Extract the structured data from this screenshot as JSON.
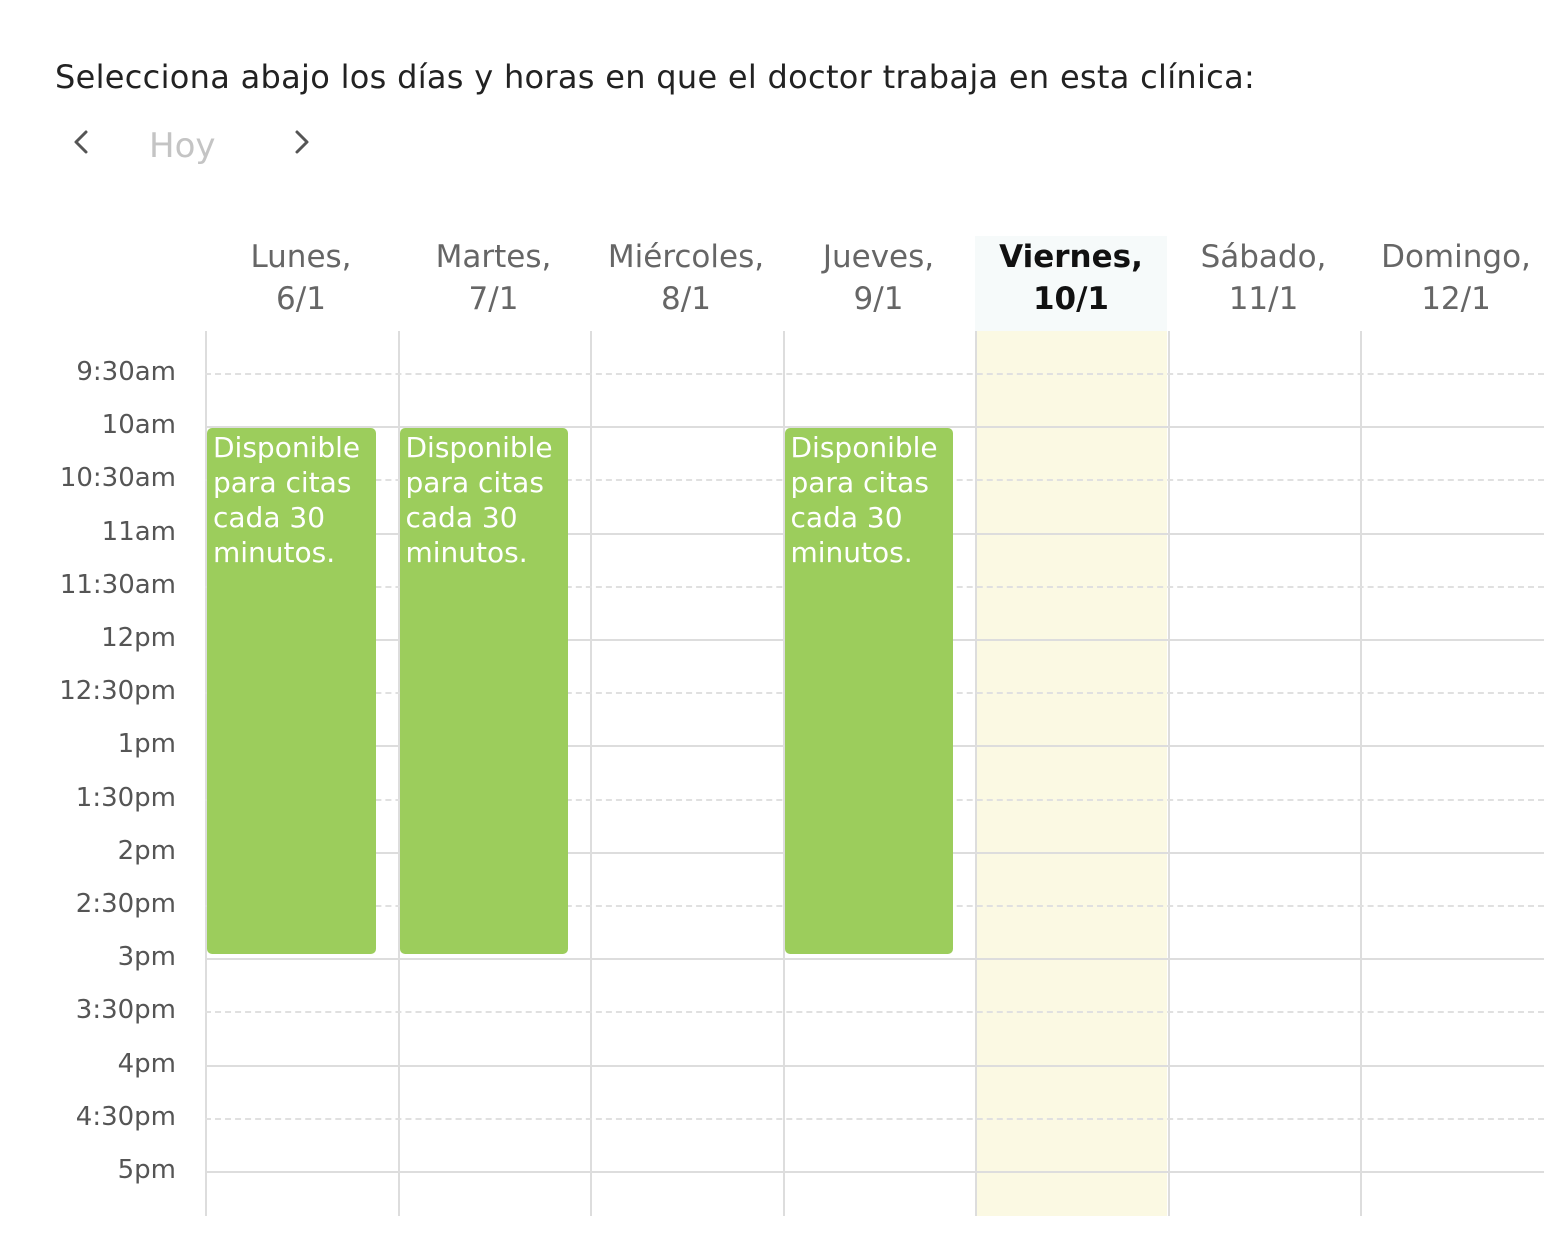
{
  "instructions": "Selecciona abajo los días y horas en que el doctor trabaja en esta clínica:",
  "nav": {
    "prev_icon": "chevron-left-icon",
    "today_label": "Hoy",
    "next_icon": "chevron-right-icon"
  },
  "days": [
    {
      "name": "Lunes,",
      "date": "6/1"
    },
    {
      "name": "Martes,",
      "date": "7/1"
    },
    {
      "name": "Miércoles,",
      "date": "8/1"
    },
    {
      "name": "Jueves,",
      "date": "9/1"
    },
    {
      "name": "Viernes,",
      "date": "10/1",
      "today": true
    },
    {
      "name": "Sábado,",
      "date": "11/1"
    },
    {
      "name": "Domingo,",
      "date": "12/1"
    }
  ],
  "time_labels": [
    "9:30am",
    "10am",
    "10:30am",
    "11am",
    "11:30am",
    "12pm",
    "12:30pm",
    "1pm",
    "1:30pm",
    "2pm",
    "2:30pm",
    "3pm",
    "3:30pm",
    "4pm",
    "4:30pm",
    "5pm"
  ],
  "events": [
    {
      "day": 0,
      "start": "10am",
      "end": "3pm",
      "text": "Disponible para citas cada 30 minutos."
    },
    {
      "day": 1,
      "start": "10am",
      "end": "3pm",
      "text": "Disponible para citas cada 30 minutos."
    },
    {
      "day": 3,
      "start": "10am",
      "end": "3pm",
      "text": "Disponible para citas cada 30 minutos."
    }
  ],
  "colors": {
    "event": "#9ccd5c",
    "today_column": "#fbf9e3",
    "grid_line": "#dddddd"
  }
}
